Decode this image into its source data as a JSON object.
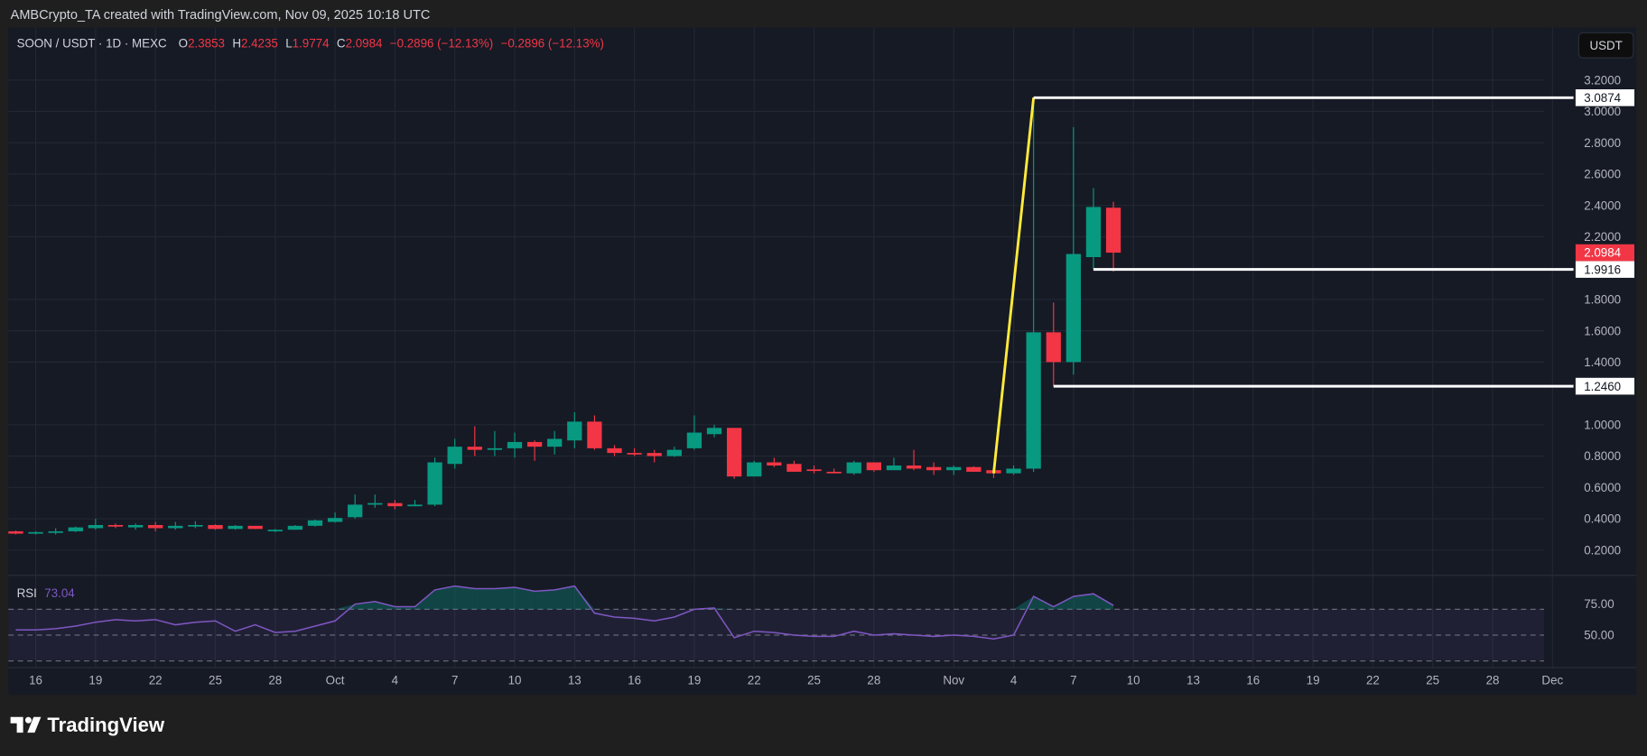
{
  "watermark": "AMBCrypto_TA created with TradingView.com, Nov 09, 2025 10:18 UTC",
  "legend": {
    "symbol": "SOON / USDT · 1D · MEXC",
    "o_label": "O",
    "o": "2.3853",
    "h_label": "H",
    "h": "2.4235",
    "l_label": "L",
    "l": "1.9774",
    "c_label": "C",
    "c": "2.0984",
    "change": "−0.2896 (−12.13%)",
    "change2": "−0.2896 (−12.13%)"
  },
  "currency_button": "USDT",
  "brand": "TradingView",
  "colors": {
    "up": "#089981",
    "down": "#f23645",
    "trendline": "#ffeb3b",
    "level": "#ffffff",
    "rsi": "#7e57c2",
    "background": "#161a25"
  },
  "chart_data": [
    {
      "type": "candlestick",
      "ylim": [
        0.1,
        3.3
      ],
      "y_ticks": [
        "3.2000",
        "3.0000",
        "2.8000",
        "2.6000",
        "2.4000",
        "2.2000",
        "1.8000",
        "1.6000",
        "1.4000",
        "1.0000",
        "0.8000",
        "0.6000",
        "0.4000",
        "0.2000"
      ],
      "y_tick_values": [
        3.2,
        3.0,
        2.8,
        2.6,
        2.4,
        2.2,
        1.8,
        1.6,
        1.4,
        1.0,
        0.8,
        0.6,
        0.4,
        0.2
      ],
      "x_tick_labels": [
        "16",
        "19",
        "22",
        "25",
        "28",
        "Oct",
        "4",
        "7",
        "10",
        "13",
        "16",
        "19",
        "22",
        "25",
        "28",
        "Nov",
        "4",
        "7",
        "10",
        "13",
        "16",
        "19",
        "22",
        "25",
        "28",
        "Dec"
      ],
      "x_tick_dates": [
        "2025-09-16",
        "2025-09-19",
        "2025-09-22",
        "2025-09-25",
        "2025-09-28",
        "2025-10-01",
        "2025-10-04",
        "2025-10-07",
        "2025-10-10",
        "2025-10-13",
        "2025-10-16",
        "2025-10-19",
        "2025-10-22",
        "2025-10-25",
        "2025-10-28",
        "2025-11-01",
        "2025-11-04",
        "2025-11-07",
        "2025-11-10",
        "2025-11-13",
        "2025-11-16",
        "2025-11-19",
        "2025-11-22",
        "2025-11-25",
        "2025-11-28",
        "2025-12-01"
      ],
      "x_range": [
        "2025-09-15",
        "2025-12-03"
      ],
      "first_date": "2025-09-15",
      "candles": [
        [
          0.32,
          0.325,
          0.3,
          0.305
        ],
        [
          0.31,
          0.32,
          0.3,
          0.315
        ],
        [
          0.315,
          0.34,
          0.3,
          0.32
        ],
        [
          0.32,
          0.35,
          0.315,
          0.345
        ],
        [
          0.34,
          0.4,
          0.33,
          0.36
        ],
        [
          0.36,
          0.37,
          0.34,
          0.355
        ],
        [
          0.345,
          0.37,
          0.33,
          0.36
        ],
        [
          0.36,
          0.38,
          0.32,
          0.34
        ],
        [
          0.34,
          0.38,
          0.33,
          0.355
        ],
        [
          0.355,
          0.385,
          0.34,
          0.36
        ],
        [
          0.36,
          0.365,
          0.33,
          0.335
        ],
        [
          0.335,
          0.36,
          0.33,
          0.355
        ],
        [
          0.355,
          0.355,
          0.335,
          0.335
        ],
        [
          0.325,
          0.335,
          0.315,
          0.33
        ],
        [
          0.33,
          0.36,
          0.33,
          0.355
        ],
        [
          0.355,
          0.395,
          0.35,
          0.39
        ],
        [
          0.38,
          0.44,
          0.375,
          0.405
        ],
        [
          0.41,
          0.555,
          0.4,
          0.49
        ],
        [
          0.49,
          0.555,
          0.47,
          0.5
        ],
        [
          0.5,
          0.52,
          0.46,
          0.48
        ],
        [
          0.485,
          0.52,
          0.48,
          0.49
        ],
        [
          0.49,
          0.79,
          0.48,
          0.76
        ],
        [
          0.75,
          0.91,
          0.72,
          0.86
        ],
        [
          0.86,
          0.99,
          0.8,
          0.84
        ],
        [
          0.84,
          0.96,
          0.8,
          0.85
        ],
        [
          0.85,
          0.95,
          0.79,
          0.89
        ],
        [
          0.89,
          0.9,
          0.77,
          0.86
        ],
        [
          0.86,
          0.96,
          0.81,
          0.91
        ],
        [
          0.9,
          1.08,
          0.85,
          1.02
        ],
        [
          1.02,
          1.06,
          0.84,
          0.85
        ],
        [
          0.85,
          0.87,
          0.8,
          0.82
        ],
        [
          0.82,
          0.85,
          0.8,
          0.81
        ],
        [
          0.82,
          0.84,
          0.76,
          0.8
        ],
        [
          0.8,
          0.86,
          0.795,
          0.84
        ],
        [
          0.85,
          1.06,
          0.84,
          0.95
        ],
        [
          0.94,
          1.0,
          0.92,
          0.98
        ],
        [
          0.98,
          0.98,
          0.655,
          0.67
        ],
        [
          0.67,
          0.77,
          0.67,
          0.76
        ],
        [
          0.76,
          0.79,
          0.73,
          0.74
        ],
        [
          0.75,
          0.77,
          0.7,
          0.7
        ],
        [
          0.715,
          0.74,
          0.69,
          0.71
        ],
        [
          0.7,
          0.72,
          0.69,
          0.69
        ],
        [
          0.69,
          0.77,
          0.68,
          0.76
        ],
        [
          0.76,
          0.76,
          0.7,
          0.71
        ],
        [
          0.71,
          0.79,
          0.71,
          0.74
        ],
        [
          0.74,
          0.84,
          0.71,
          0.72
        ],
        [
          0.73,
          0.76,
          0.68,
          0.71
        ],
        [
          0.71,
          0.74,
          0.68,
          0.73
        ],
        [
          0.73,
          0.735,
          0.7,
          0.7
        ],
        [
          0.71,
          0.71,
          0.66,
          0.69
        ],
        [
          0.69,
          0.74,
          0.68,
          0.72
        ],
        [
          0.72,
          3.0874,
          0.7,
          1.59
        ],
        [
          1.59,
          1.78,
          1.246,
          1.4
        ],
        [
          1.4,
          2.9,
          1.32,
          2.09
        ],
        [
          2.07,
          2.51,
          1.9916,
          2.39
        ],
        [
          2.3853,
          2.4235,
          1.9774,
          2.0984
        ]
      ],
      "candle_fields": [
        "open",
        "high",
        "low",
        "close"
      ],
      "last_price": "2.0984",
      "levels": [
        {
          "value": 3.0874,
          "label": "3.0874",
          "from": "2025-11-05"
        },
        {
          "value": 1.9916,
          "label": "1.9916",
          "from": "2025-11-08"
        },
        {
          "value": 1.246,
          "label": "1.2460",
          "from": "2025-11-06"
        }
      ],
      "trendline": {
        "from": [
          "2025-11-03",
          0.69
        ],
        "to": [
          "2025-11-05",
          3.0874
        ]
      }
    },
    {
      "type": "line",
      "name": "RSI",
      "value_label": "73.04",
      "ylim": [
        20,
        95
      ],
      "y_ticks": [
        "75.00",
        "50.00"
      ],
      "bands": [
        70,
        50,
        30
      ],
      "values": [
        54,
        54,
        55,
        57,
        60,
        62,
        61,
        62,
        58,
        60,
        61,
        53,
        58,
        52,
        53,
        57,
        61,
        74,
        76,
        72,
        72,
        85,
        88,
        86,
        86,
        87,
        84,
        85,
        88,
        67,
        64,
        63,
        61,
        64,
        70,
        71,
        48,
        53,
        52,
        50,
        49,
        49,
        53,
        50,
        51,
        50,
        49,
        50,
        49,
        47,
        50,
        80,
        72,
        80,
        82,
        73.04
      ]
    }
  ]
}
